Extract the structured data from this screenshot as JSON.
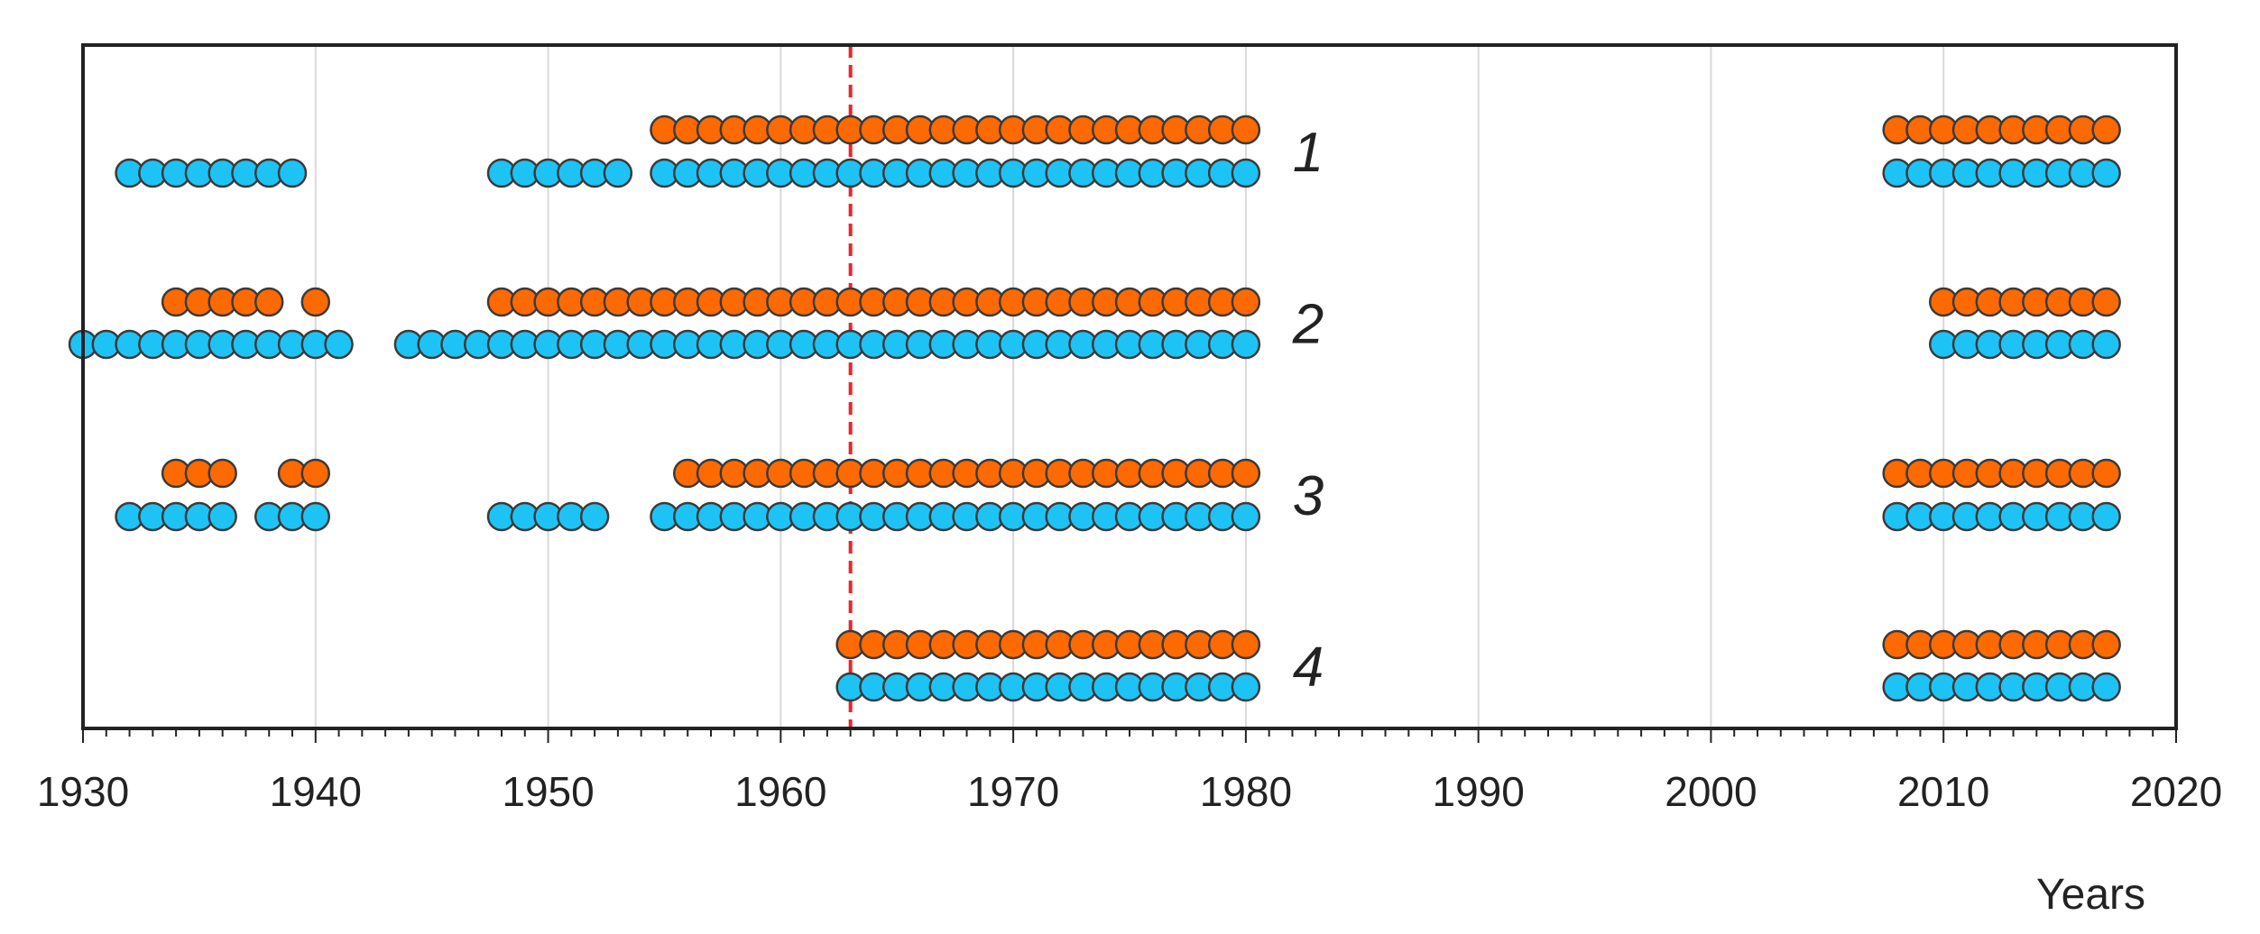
{
  "chart_data": {
    "type": "scatter",
    "title": "",
    "xlabel": "Years",
    "ylabel": "",
    "xlim": [
      1930,
      2020
    ],
    "xticks": [
      1930,
      1940,
      1950,
      1960,
      1970,
      1980,
      1990,
      2000,
      2010,
      2020
    ],
    "grid": "vertical",
    "legend": "none",
    "reference_line": {
      "x": 1963,
      "color": "#e8262b",
      "style": "dashed"
    },
    "series_colors": {
      "orange": "#ff6a00",
      "blue": "#1ec3f5"
    },
    "rows": [
      {
        "label": "1",
        "orange": [
          1955,
          1956,
          1957,
          1958,
          1959,
          1960,
          1961,
          1962,
          1963,
          1964,
          1965,
          1966,
          1967,
          1968,
          1969,
          1970,
          1971,
          1972,
          1973,
          1974,
          1975,
          1976,
          1977,
          1978,
          1979,
          1980,
          2008,
          2009,
          2010,
          2011,
          2012,
          2013,
          2014,
          2015,
          2016,
          2017
        ],
        "blue": [
          1932,
          1933,
          1934,
          1935,
          1936,
          1937,
          1938,
          1939,
          1948,
          1949,
          1950,
          1951,
          1952,
          1953,
          1955,
          1956,
          1957,
          1958,
          1959,
          1960,
          1961,
          1962,
          1963,
          1964,
          1965,
          1966,
          1967,
          1968,
          1969,
          1970,
          1971,
          1972,
          1973,
          1974,
          1975,
          1976,
          1977,
          1978,
          1979,
          1980,
          2008,
          2009,
          2010,
          2011,
          2012,
          2013,
          2014,
          2015,
          2016,
          2017
        ]
      },
      {
        "label": "2",
        "orange": [
          1934,
          1935,
          1936,
          1937,
          1938,
          1940,
          1948,
          1949,
          1950,
          1951,
          1952,
          1953,
          1954,
          1955,
          1956,
          1957,
          1958,
          1959,
          1960,
          1961,
          1962,
          1963,
          1964,
          1965,
          1966,
          1967,
          1968,
          1969,
          1970,
          1971,
          1972,
          1973,
          1974,
          1975,
          1976,
          1977,
          1978,
          1979,
          1980,
          2010,
          2011,
          2012,
          2013,
          2014,
          2015,
          2016,
          2017
        ],
        "blue": [
          1930,
          1931,
          1932,
          1933,
          1934,
          1935,
          1936,
          1937,
          1938,
          1939,
          1940,
          1941,
          1944,
          1945,
          1946,
          1947,
          1948,
          1949,
          1950,
          1951,
          1952,
          1953,
          1954,
          1955,
          1956,
          1957,
          1958,
          1959,
          1960,
          1961,
          1962,
          1963,
          1964,
          1965,
          1966,
          1967,
          1968,
          1969,
          1970,
          1971,
          1972,
          1973,
          1974,
          1975,
          1976,
          1977,
          1978,
          1979,
          1980,
          2010,
          2011,
          2012,
          2013,
          2014,
          2015,
          2016,
          2017
        ]
      },
      {
        "label": "3",
        "orange": [
          1934,
          1935,
          1936,
          1939,
          1940,
          1956,
          1957,
          1958,
          1959,
          1960,
          1961,
          1962,
          1963,
          1964,
          1965,
          1966,
          1967,
          1968,
          1969,
          1970,
          1971,
          1972,
          1973,
          1974,
          1975,
          1976,
          1977,
          1978,
          1979,
          1980,
          2008,
          2009,
          2010,
          2011,
          2012,
          2013,
          2014,
          2015,
          2016,
          2017
        ],
        "blue": [
          1932,
          1933,
          1934,
          1935,
          1936,
          1938,
          1939,
          1940,
          1948,
          1949,
          1950,
          1951,
          1952,
          1955,
          1956,
          1957,
          1958,
          1959,
          1960,
          1961,
          1962,
          1963,
          1964,
          1965,
          1966,
          1967,
          1968,
          1969,
          1970,
          1971,
          1972,
          1973,
          1974,
          1975,
          1976,
          1977,
          1978,
          1979,
          1980,
          2008,
          2009,
          2010,
          2011,
          2012,
          2013,
          2014,
          2015,
          2016,
          2017
        ]
      },
      {
        "label": "4",
        "orange": [
          1963,
          1964,
          1965,
          1966,
          1967,
          1968,
          1969,
          1970,
          1971,
          1972,
          1973,
          1974,
          1975,
          1976,
          1977,
          1978,
          1979,
          1980,
          2008,
          2009,
          2010,
          2011,
          2012,
          2013,
          2014,
          2015,
          2016,
          2017
        ],
        "blue": [
          1963,
          1964,
          1965,
          1966,
          1967,
          1968,
          1969,
          1970,
          1971,
          1972,
          1973,
          1974,
          1975,
          1976,
          1977,
          1978,
          1979,
          1980,
          2008,
          2009,
          2010,
          2011,
          2012,
          2013,
          2014,
          2015,
          2016,
          2017
        ]
      }
    ]
  }
}
